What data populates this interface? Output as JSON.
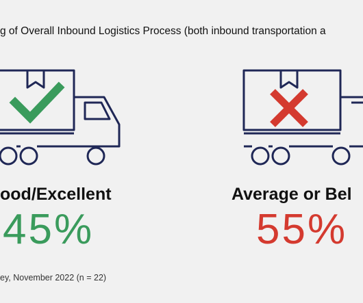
{
  "title": "g of Overall Inbound Logistics Process (both inbound transportation a",
  "panels": [
    {
      "label": "ood/Excellent",
      "value": "45%"
    },
    {
      "label": "Average or Bel",
      "value": "55%"
    }
  ],
  "footer": "ey, November 2022 (n = 22)"
}
